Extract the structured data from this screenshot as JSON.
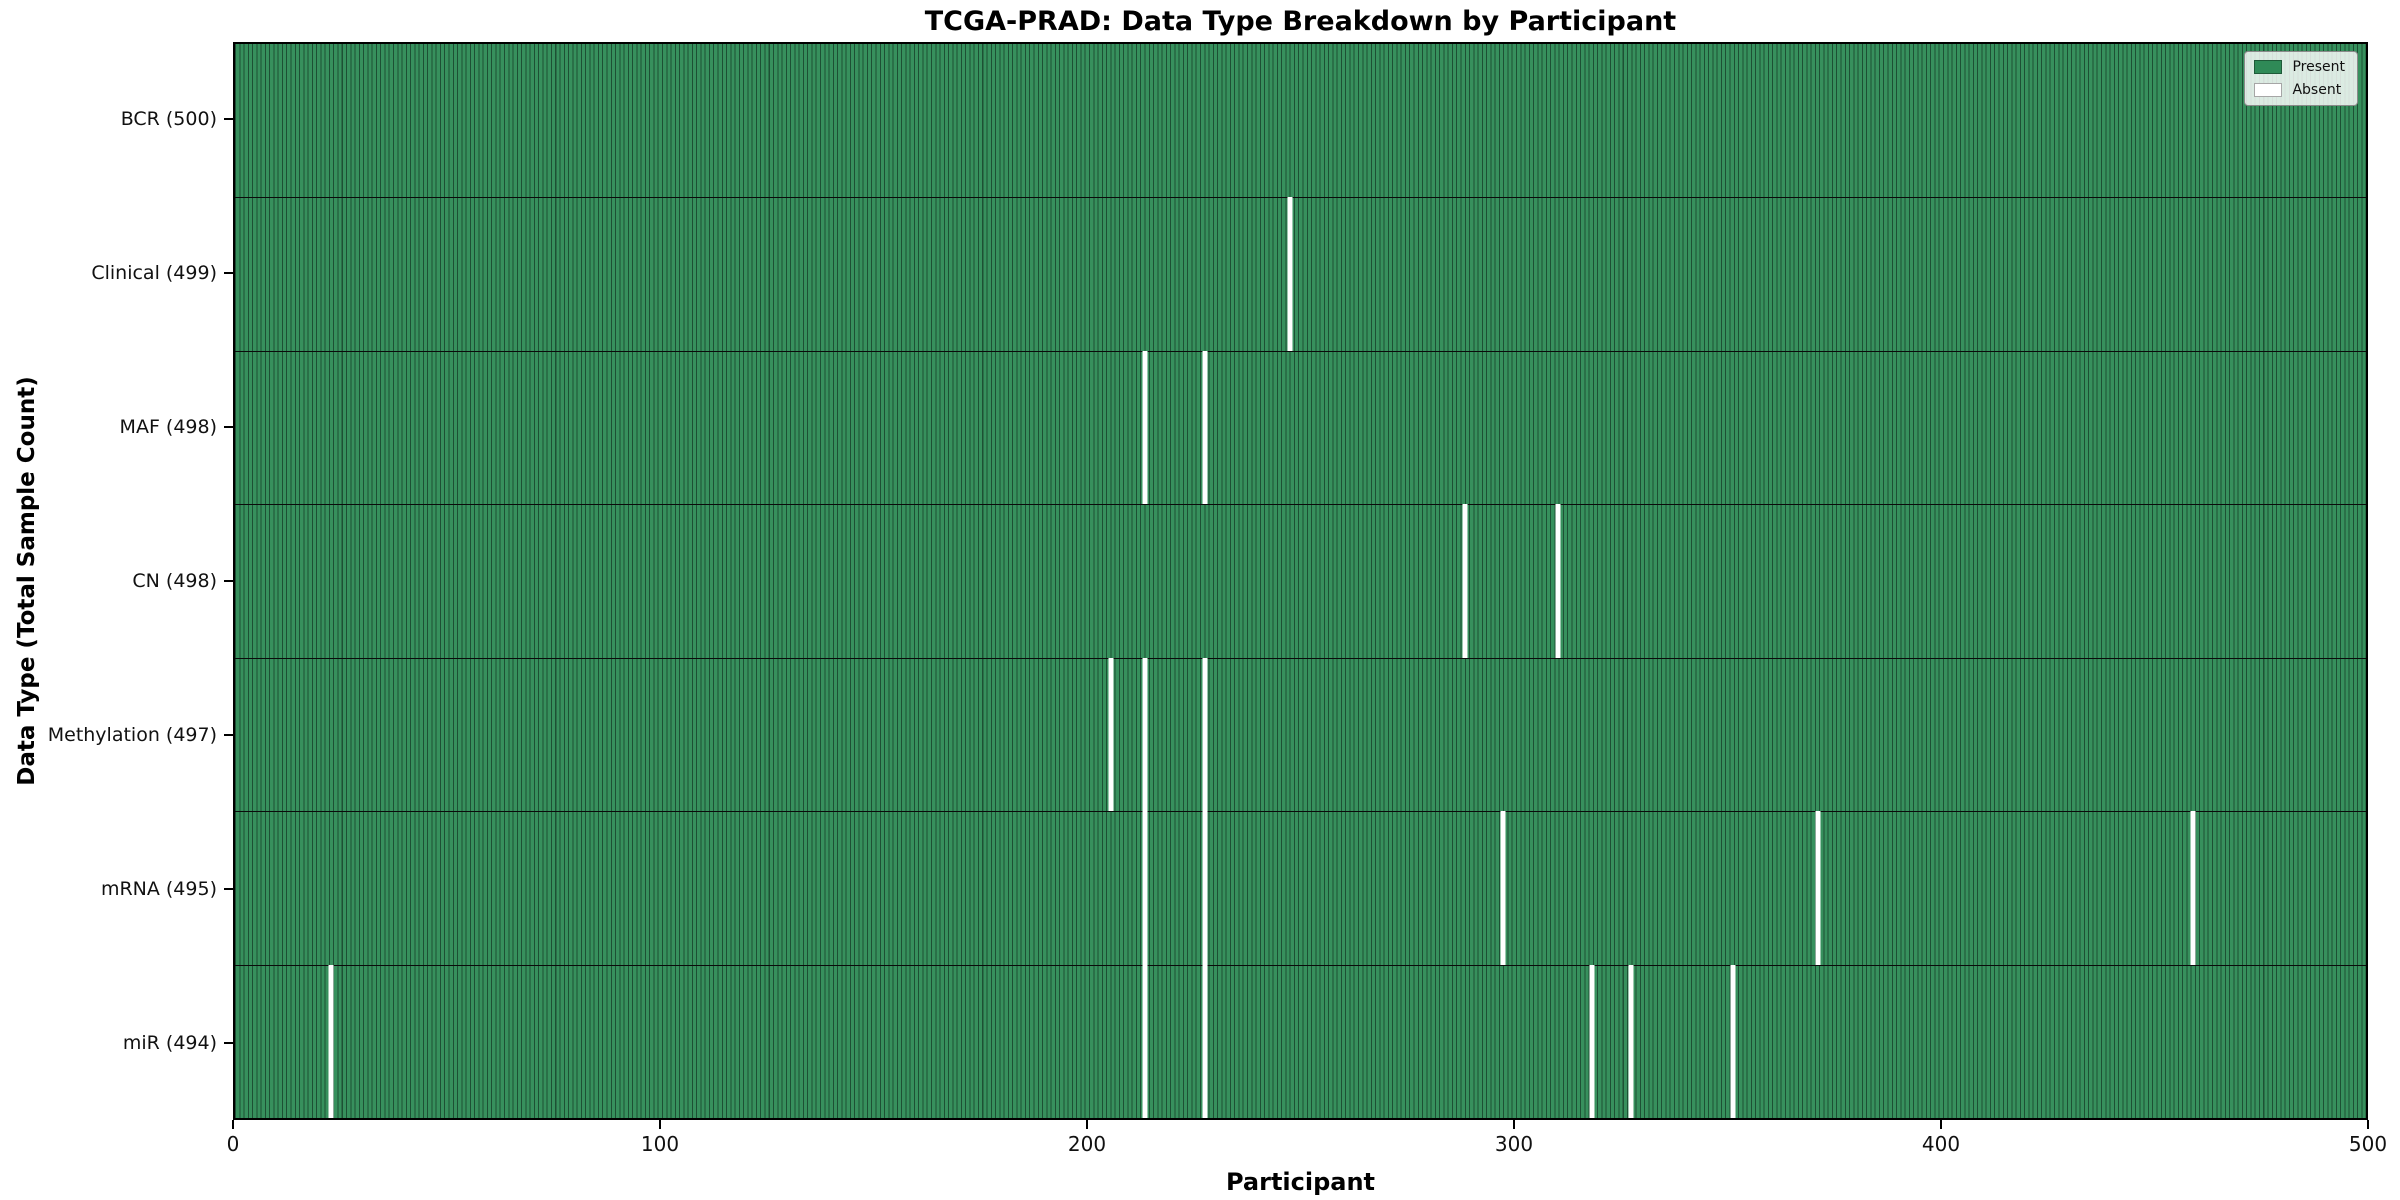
{
  "title": "TCGA-PRAD: Data Type Breakdown by Participant",
  "xlabel": "Participant",
  "ylabel": "Data Type (Total Sample Count)",
  "legend": {
    "present": "Present",
    "absent": "Absent"
  },
  "colors": {
    "present_fill": "#2f8a57",
    "present_edge": "#1d5034",
    "absent_fill": "#ffffff",
    "divider": "#0b0b0b"
  },
  "chart_data": {
    "type": "heatmap",
    "title": "TCGA-PRAD: Data Type Breakdown by Participant",
    "xlabel": "Participant",
    "ylabel": "Data Type (Total Sample Count)",
    "x_range": [
      0,
      500
    ],
    "x_ticks": [
      0,
      100,
      200,
      300,
      400,
      500
    ],
    "n_participants": 500,
    "legend_entries": [
      "Present",
      "Absent"
    ],
    "legend_position": "upper right",
    "rows": [
      {
        "label": "BCR (500)",
        "data_type": "BCR",
        "total": 500,
        "absent_participants": []
      },
      {
        "label": "Clinical (499)",
        "data_type": "Clinical",
        "total": 499,
        "absent_participants": [
          247
        ]
      },
      {
        "label": "MAF (498)",
        "data_type": "MAF",
        "total": 498,
        "absent_participants": [
          213,
          227
        ]
      },
      {
        "label": "CN (498)",
        "data_type": "CN",
        "total": 498,
        "absent_participants": [
          288,
          310
        ]
      },
      {
        "label": "Methylation (497)",
        "data_type": "Methylation",
        "total": 497,
        "absent_participants": [
          205,
          213,
          227
        ]
      },
      {
        "label": "mRNA (495)",
        "data_type": "mRNA",
        "total": 495,
        "absent_participants": [
          213,
          227,
          297,
          371,
          459
        ]
      },
      {
        "label": "miR (494)",
        "data_type": "miR",
        "total": 494,
        "absent_participants": [
          22,
          213,
          227,
          318,
          327,
          351
        ]
      }
    ]
  }
}
